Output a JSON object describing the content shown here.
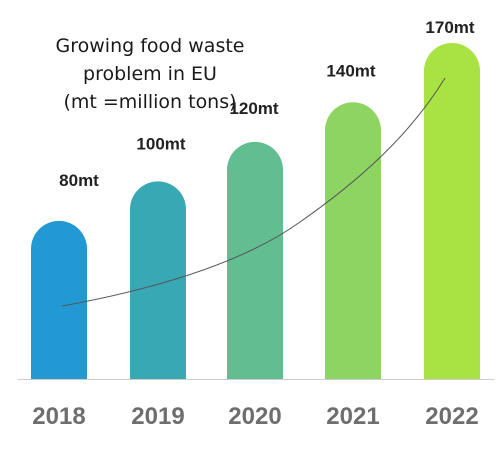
{
  "chart_data": {
    "type": "bar",
    "title_lines": [
      "Growing food waste",
      "problem in EU",
      "(mt =million tons)"
    ],
    "categories": [
      "2018",
      "2019",
      "2020",
      "2021",
      "2022"
    ],
    "values": [
      80,
      100,
      120,
      140,
      170
    ],
    "data_labels": [
      "80mt",
      "100mt",
      "120mt",
      "140mt",
      "170mt"
    ],
    "bar_colors": [
      "#2299d2",
      "#38a8b4",
      "#62be90",
      "#8dd462",
      "#a8e243"
    ],
    "trend_line": true,
    "trend_line_color": "#555555",
    "baseline_color": "#cccccc",
    "grid": false,
    "legend": false,
    "ylim": [
      0,
      170
    ]
  }
}
